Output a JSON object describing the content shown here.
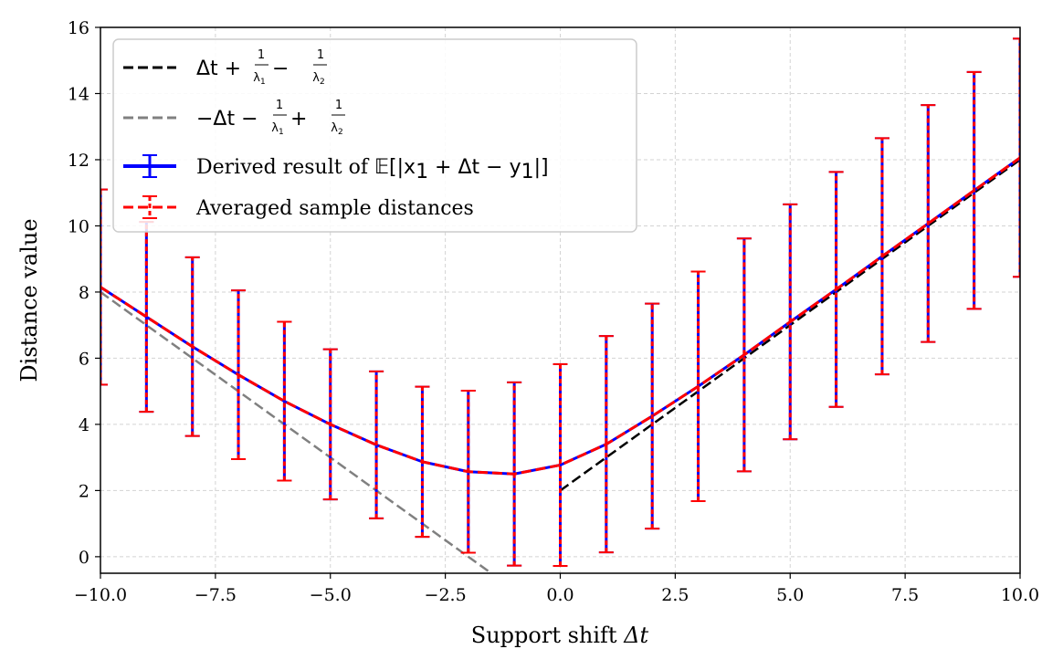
{
  "chart_data": {
    "type": "line",
    "xlabel_text": "Support shift ",
    "xlabel_symbol": "Δt",
    "ylabel": "Distance value",
    "xlim": [
      -10,
      10
    ],
    "ylim": [
      -0.5,
      16
    ],
    "xticks": [
      -10,
      -7.5,
      -5,
      -2.5,
      0,
      2.5,
      5,
      7.5,
      10
    ],
    "xtick_labels": [
      "−10.0",
      "−7.5",
      "−5.0",
      "−2.5",
      "0.0",
      "2.5",
      "5.0",
      "7.5",
      "10.0"
    ],
    "yticks": [
      0,
      2,
      4,
      6,
      8,
      10,
      12,
      14,
      16
    ],
    "ytick_labels": [
      "0",
      "2",
      "4",
      "6",
      "8",
      "10",
      "12",
      "14",
      "16"
    ],
    "grid": true,
    "legend_position": "top-left",
    "series": [
      {
        "name": "Δt + 1/λ1 − 1/λ2",
        "style": "dashed",
        "color": "#000000",
        "x": [
          0,
          10
        ],
        "y": [
          2.0,
          12.0
        ]
      },
      {
        "name": "−Δt − 1/λ1 + 1/λ2",
        "style": "dashed",
        "color": "#808080",
        "x": [
          -10,
          -1.45
        ],
        "y": [
          8.0,
          -0.55
        ]
      },
      {
        "name": "Derived result of 𝔼[|x1 + Δt − y1|]",
        "style": "solid",
        "color": "#0000ff",
        "x": [
          -10,
          -9,
          -8,
          -7,
          -6,
          -5,
          -4,
          -3,
          -2,
          -1,
          0,
          1,
          2,
          3,
          4,
          5,
          6,
          7,
          8,
          9,
          10
        ],
        "y": [
          8.15,
          7.25,
          6.35,
          5.5,
          4.7,
          4.0,
          3.38,
          2.87,
          2.57,
          2.5,
          2.77,
          3.4,
          4.25,
          5.15,
          6.1,
          7.1,
          8.08,
          9.08,
          10.07,
          11.07,
          12.06
        ],
        "yerr": [
          2.95,
          2.87,
          2.7,
          2.55,
          2.4,
          2.27,
          2.22,
          2.27,
          2.45,
          2.77,
          3.05,
          3.27,
          3.4,
          3.47,
          3.52,
          3.55,
          3.55,
          3.57,
          3.58,
          3.58,
          3.6
        ]
      },
      {
        "name": "Averaged sample distances",
        "style": "dashed",
        "color": "#ff0000",
        "x": [
          -10,
          -9,
          -8,
          -7,
          -6,
          -5,
          -4,
          -3,
          -2,
          -1,
          0,
          1,
          2,
          3,
          4,
          5,
          6,
          7,
          8,
          9,
          10
        ],
        "y": [
          8.15,
          7.25,
          6.35,
          5.5,
          4.7,
          4.0,
          3.38,
          2.87,
          2.57,
          2.5,
          2.77,
          3.4,
          4.25,
          5.15,
          6.1,
          7.1,
          8.08,
          9.08,
          10.07,
          11.07,
          12.06
        ],
        "yerr": [
          2.95,
          2.87,
          2.7,
          2.55,
          2.4,
          2.27,
          2.22,
          2.27,
          2.45,
          2.77,
          3.05,
          3.27,
          3.4,
          3.47,
          3.52,
          3.55,
          3.55,
          3.57,
          3.58,
          3.58,
          3.6
        ]
      }
    ]
  },
  "legend": {
    "item1": {
      "main": "Δt + ",
      "mid": " − "
    },
    "item2": {
      "main": "−Δt − ",
      "mid": " + "
    },
    "frac_one": "1",
    "frac_lambda1": "λ",
    "frac_lambda2": "λ",
    "sub1": "1",
    "sub2": "2",
    "item3_text": "Derived result of ",
    "item3_math": "𝔼[|x",
    "item3_math_sub": "1",
    "item3_math_mid": " + Δt − y",
    "item3_math_sub2": "1",
    "item3_math_end": "|]",
    "item4_text": "Averaged sample distances"
  }
}
